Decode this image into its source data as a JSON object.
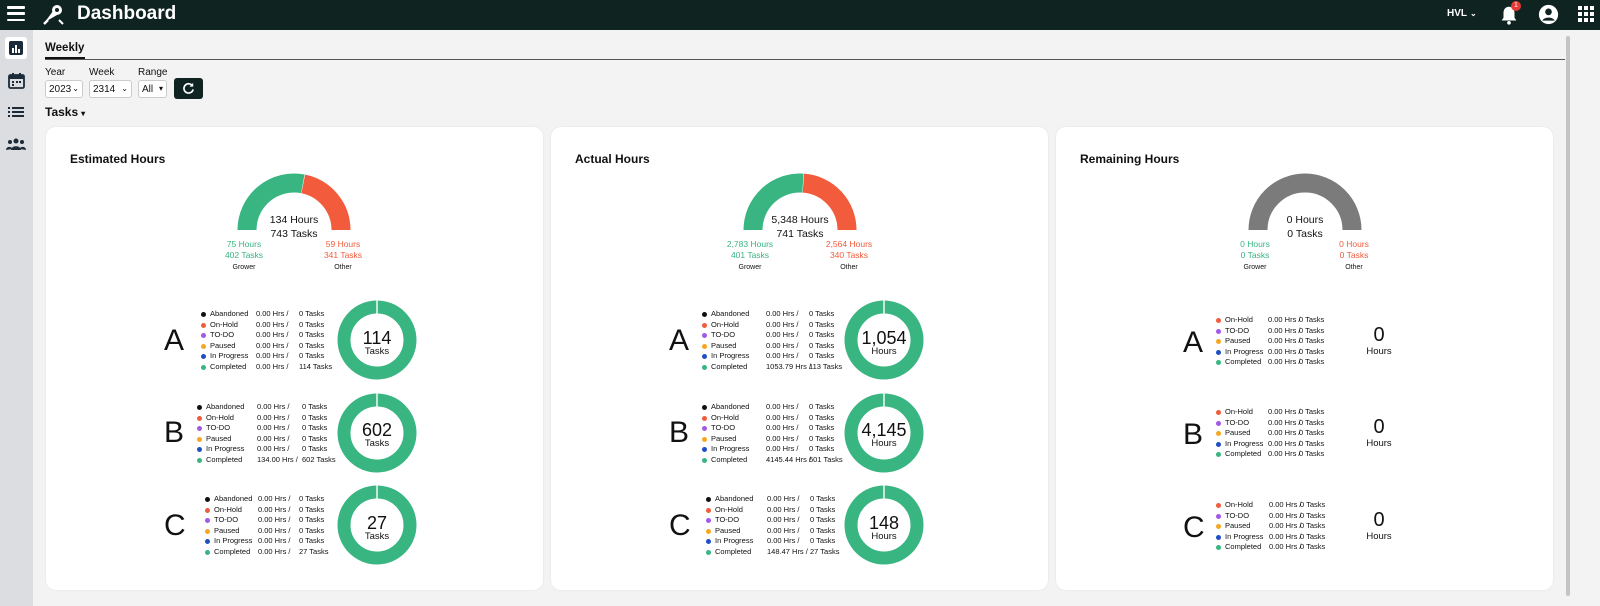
{
  "app": {
    "title": "Dashboard",
    "org": "HVL",
    "notification_count": "1"
  },
  "colors": {
    "topbar": "#0f2421",
    "grower": "#38b581",
    "other": "#f25b3b",
    "remaining": "#7b7b7b"
  },
  "tab": {
    "weekly": "Weekly"
  },
  "filters": {
    "year_label": "Year",
    "year_value": "2023",
    "week_label": "Week",
    "week_value": "2314",
    "range_label": "Range",
    "range_value": "All"
  },
  "tasks_dropdown": "Tasks",
  "status_colors": {
    "Abandoned": "#111111",
    "On-Hold": "#f25b3b",
    "TO-DO": "#a259e6",
    "Paused": "#f5a623",
    "In Progress": "#1f4fc4",
    "Completed": "#38b581"
  },
  "cards": [
    {
      "title": "Estimated Hours",
      "gauge": {
        "green_fraction": 0.56,
        "color_mode": "split",
        "total_hours": "134 Hours",
        "total_tasks": "743 Tasks",
        "left": {
          "hours": "75 Hours",
          "tasks": "402 Tasks",
          "label": "Grower"
        },
        "right": {
          "hours": "59 Hours",
          "tasks": "341 Tasks",
          "label": "Other"
        }
      },
      "sections": [
        {
          "letter": "A",
          "value": "114",
          "unit": "Tasks",
          "rows": [
            {
              "status": "Abandoned",
              "hrs": "0.00 Hrs /",
              "tasks": "0 Tasks"
            },
            {
              "status": "On-Hold",
              "hrs": "0.00 Hrs /",
              "tasks": "0 Tasks"
            },
            {
              "status": "TO-DO",
              "hrs": "0.00 Hrs /",
              "tasks": "0 Tasks"
            },
            {
              "status": "Paused",
              "hrs": "0.00 Hrs /",
              "tasks": "0 Tasks"
            },
            {
              "status": "In Progress",
              "hrs": "0.00 Hrs /",
              "tasks": "0 Tasks"
            },
            {
              "status": "Completed",
              "hrs": "0.00 Hrs /",
              "tasks": "114 Tasks"
            }
          ]
        },
        {
          "letter": "B",
          "value": "602",
          "unit": "Tasks",
          "rows": [
            {
              "status": "Abandoned",
              "hrs": "0.00 Hrs /",
              "tasks": "0 Tasks"
            },
            {
              "status": "On-Hold",
              "hrs": "0.00 Hrs /",
              "tasks": "0 Tasks"
            },
            {
              "status": "TO-DO",
              "hrs": "0.00 Hrs /",
              "tasks": "0 Tasks"
            },
            {
              "status": "Paused",
              "hrs": "0.00 Hrs /",
              "tasks": "0 Tasks"
            },
            {
              "status": "In Progress",
              "hrs": "0.00 Hrs /",
              "tasks": "0 Tasks"
            },
            {
              "status": "Completed",
              "hrs": "134.00 Hrs /",
              "tasks": "602 Tasks"
            }
          ]
        },
        {
          "letter": "C",
          "value": "27",
          "unit": "Tasks",
          "rows": [
            {
              "status": "Abandoned",
              "hrs": "0.00 Hrs /",
              "tasks": "0 Tasks"
            },
            {
              "status": "On-Hold",
              "hrs": "0.00 Hrs /",
              "tasks": "0 Tasks"
            },
            {
              "status": "TO-DO",
              "hrs": "0.00 Hrs /",
              "tasks": "0 Tasks"
            },
            {
              "status": "Paused",
              "hrs": "0.00 Hrs /",
              "tasks": "0 Tasks"
            },
            {
              "status": "In Progress",
              "hrs": "0.00 Hrs /",
              "tasks": "0 Tasks"
            },
            {
              "status": "Completed",
              "hrs": "0.00 Hrs /",
              "tasks": "27 Tasks"
            }
          ]
        }
      ]
    },
    {
      "title": "Actual Hours",
      "gauge": {
        "green_fraction": 0.52,
        "color_mode": "split",
        "total_hours": "5,348 Hours",
        "total_tasks": "741 Tasks",
        "left": {
          "hours": "2,783 Hours",
          "tasks": "401 Tasks",
          "label": "Grower"
        },
        "right": {
          "hours": "2,564 Hours",
          "tasks": "340 Tasks",
          "label": "Other"
        }
      },
      "sections": [
        {
          "letter": "A",
          "value": "1,054",
          "unit": "Hours",
          "rows": [
            {
              "status": "Abandoned",
              "hrs": "0.00 Hrs /",
              "tasks": "0 Tasks"
            },
            {
              "status": "On-Hold",
              "hrs": "0.00 Hrs /",
              "tasks": "0 Tasks"
            },
            {
              "status": "TO-DO",
              "hrs": "0.00 Hrs /",
              "tasks": "0 Tasks"
            },
            {
              "status": "Paused",
              "hrs": "0.00 Hrs /",
              "tasks": "0 Tasks"
            },
            {
              "status": "In Progress",
              "hrs": "0.00 Hrs /",
              "tasks": "0 Tasks"
            },
            {
              "status": "Completed",
              "hrs": "1053.79 Hrs /",
              "tasks": "113 Tasks"
            }
          ]
        },
        {
          "letter": "B",
          "value": "4,145",
          "unit": "Hours",
          "rows": [
            {
              "status": "Abandoned",
              "hrs": "0.00 Hrs /",
              "tasks": "0 Tasks"
            },
            {
              "status": "On-Hold",
              "hrs": "0.00 Hrs /",
              "tasks": "0 Tasks"
            },
            {
              "status": "TO-DO",
              "hrs": "0.00 Hrs /",
              "tasks": "0 Tasks"
            },
            {
              "status": "Paused",
              "hrs": "0.00 Hrs /",
              "tasks": "0 Tasks"
            },
            {
              "status": "In Progress",
              "hrs": "0.00 Hrs /",
              "tasks": "0 Tasks"
            },
            {
              "status": "Completed",
              "hrs": "4145.44 Hrs /",
              "tasks": "601 Tasks"
            }
          ]
        },
        {
          "letter": "C",
          "value": "148",
          "unit": "Hours",
          "rows": [
            {
              "status": "Abandoned",
              "hrs": "0.00 Hrs /",
              "tasks": "0 Tasks"
            },
            {
              "status": "On-Hold",
              "hrs": "0.00 Hrs /",
              "tasks": "0 Tasks"
            },
            {
              "status": "TO-DO",
              "hrs": "0.00 Hrs /",
              "tasks": "0 Tasks"
            },
            {
              "status": "Paused",
              "hrs": "0.00 Hrs /",
              "tasks": "0 Tasks"
            },
            {
              "status": "In Progress",
              "hrs": "0.00 Hrs /",
              "tasks": "0 Tasks"
            },
            {
              "status": "Completed",
              "hrs": "148.47 Hrs /",
              "tasks": "27 Tasks"
            }
          ]
        }
      ]
    },
    {
      "title": "Remaining Hours",
      "gauge": {
        "green_fraction": 1,
        "color_mode": "gray",
        "total_hours": "0 Hours",
        "total_tasks": "0 Tasks",
        "left": {
          "hours": "0 Hours",
          "tasks": "0 Tasks",
          "label": "Grower"
        },
        "right": {
          "hours": "0 Hours",
          "tasks": "0 Tasks",
          "label": "Other"
        }
      },
      "sections": [
        {
          "letter": "A",
          "value": "0",
          "unit": "Hours",
          "rows": [
            {
              "status": "On-Hold",
              "hrs": "0.00 Hrs /",
              "tasks": "0 Tasks"
            },
            {
              "status": "TO-DO",
              "hrs": "0.00 Hrs /",
              "tasks": "0 Tasks"
            },
            {
              "status": "Paused",
              "hrs": "0.00 Hrs /",
              "tasks": "0 Tasks"
            },
            {
              "status": "In Progress",
              "hrs": "0.00 Hrs /",
              "tasks": "0 Tasks"
            },
            {
              "status": "Completed",
              "hrs": "0.00 Hrs /",
              "tasks": "0 Tasks"
            }
          ]
        },
        {
          "letter": "B",
          "value": "0",
          "unit": "Hours",
          "rows": [
            {
              "status": "On-Hold",
              "hrs": "0.00 Hrs /",
              "tasks": "0 Tasks"
            },
            {
              "status": "TO-DO",
              "hrs": "0.00 Hrs /",
              "tasks": "0 Tasks"
            },
            {
              "status": "Paused",
              "hrs": "0.00 Hrs /",
              "tasks": "0 Tasks"
            },
            {
              "status": "In Progress",
              "hrs": "0.00 Hrs /",
              "tasks": "0 Tasks"
            },
            {
              "status": "Completed",
              "hrs": "0.00 Hrs /",
              "tasks": "0 Tasks"
            }
          ]
        },
        {
          "letter": "C",
          "value": "0",
          "unit": "Hours",
          "rows": [
            {
              "status": "On-Hold",
              "hrs": "0.00 Hrs /",
              "tasks": "0 Tasks"
            },
            {
              "status": "TO-DO",
              "hrs": "0.00 Hrs /",
              "tasks": "0 Tasks"
            },
            {
              "status": "Paused",
              "hrs": "0.00 Hrs /",
              "tasks": "0 Tasks"
            },
            {
              "status": "In Progress",
              "hrs": "0.00 Hrs /",
              "tasks": "0 Tasks"
            },
            {
              "status": "Completed",
              "hrs": "0.00 Hrs /",
              "tasks": "0 Tasks"
            }
          ]
        }
      ]
    }
  ]
}
